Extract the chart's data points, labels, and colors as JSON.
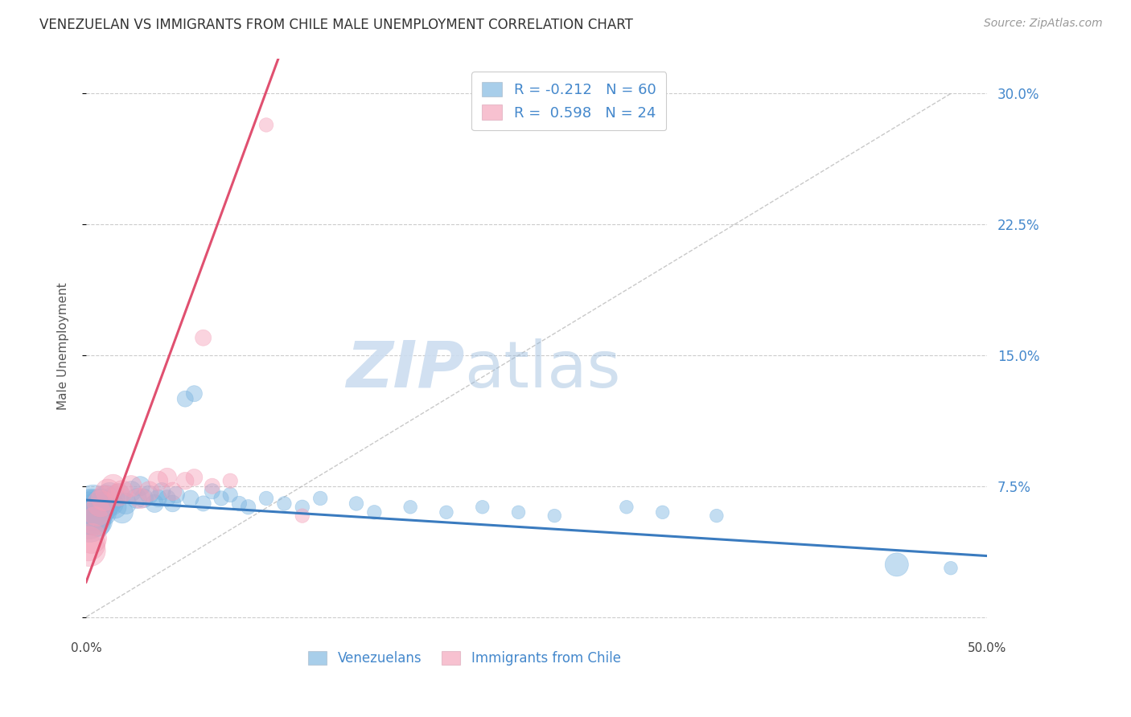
{
  "title": "VENEZUELAN VS IMMIGRANTS FROM CHILE MALE UNEMPLOYMENT CORRELATION CHART",
  "source": "Source: ZipAtlas.com",
  "ylabel": "Male Unemployment",
  "xlim": [
    0.0,
    0.5
  ],
  "ylim": [
    -0.01,
    0.32
  ],
  "yticks": [
    0.0,
    0.075,
    0.15,
    0.225,
    0.3
  ],
  "ytick_labels_right": [
    "",
    "7.5%",
    "15.0%",
    "22.5%",
    "30.0%"
  ],
  "background_color": "#ffffff",
  "blue_color": "#7ab4e0",
  "pink_color": "#f4a0b8",
  "trendline_blue_color": "#3a7bbf",
  "trendline_pink_color": "#e05070",
  "legend_R_blue": "-0.212",
  "legend_N_blue": "60",
  "legend_R_pink": "0.598",
  "legend_N_pink": "24",
  "venezuelan_x": [
    0.001,
    0.002,
    0.002,
    0.003,
    0.003,
    0.004,
    0.004,
    0.005,
    0.005,
    0.006,
    0.006,
    0.007,
    0.008,
    0.009,
    0.01,
    0.011,
    0.012,
    0.013,
    0.014,
    0.015,
    0.016,
    0.018,
    0.02,
    0.022,
    0.025,
    0.028,
    0.03,
    0.032,
    0.035,
    0.038,
    0.04,
    0.042,
    0.045,
    0.048,
    0.05,
    0.055,
    0.058,
    0.06,
    0.065,
    0.07,
    0.075,
    0.08,
    0.085,
    0.09,
    0.1,
    0.11,
    0.12,
    0.13,
    0.15,
    0.16,
    0.18,
    0.2,
    0.22,
    0.24,
    0.26,
    0.3,
    0.32,
    0.35,
    0.45,
    0.48
  ],
  "venezuelan_y": [
    0.058,
    0.06,
    0.055,
    0.062,
    0.058,
    0.065,
    0.06,
    0.063,
    0.058,
    0.062,
    0.055,
    0.06,
    0.065,
    0.06,
    0.063,
    0.068,
    0.065,
    0.07,
    0.065,
    0.068,
    0.063,
    0.07,
    0.06,
    0.065,
    0.072,
    0.068,
    0.075,
    0.068,
    0.07,
    0.065,
    0.068,
    0.072,
    0.068,
    0.065,
    0.07,
    0.125,
    0.068,
    0.128,
    0.065,
    0.072,
    0.068,
    0.07,
    0.065,
    0.063,
    0.068,
    0.065,
    0.063,
    0.068,
    0.065,
    0.06,
    0.063,
    0.06,
    0.063,
    0.06,
    0.058,
    0.063,
    0.06,
    0.058,
    0.03,
    0.028
  ],
  "venezuelan_size": [
    220,
    200,
    180,
    160,
    150,
    140,
    130,
    120,
    110,
    100,
    95,
    90,
    85,
    80,
    75,
    70,
    65,
    60,
    58,
    55,
    52,
    50,
    48,
    45,
    42,
    40,
    38,
    36,
    34,
    32,
    30,
    30,
    28,
    28,
    28,
    26,
    26,
    26,
    24,
    24,
    22,
    22,
    22,
    22,
    20,
    20,
    20,
    20,
    20,
    20,
    18,
    18,
    18,
    18,
    18,
    18,
    18,
    18,
    55,
    18
  ],
  "chile_x": [
    0.001,
    0.002,
    0.003,
    0.005,
    0.006,
    0.008,
    0.01,
    0.012,
    0.015,
    0.018,
    0.02,
    0.025,
    0.03,
    0.035,
    0.04,
    0.045,
    0.048,
    0.055,
    0.06,
    0.065,
    0.07,
    0.08,
    0.1,
    0.12
  ],
  "chile_y": [
    0.042,
    0.038,
    0.045,
    0.055,
    0.06,
    0.065,
    0.068,
    0.072,
    0.075,
    0.07,
    0.072,
    0.075,
    0.068,
    0.072,
    0.078,
    0.08,
    0.072,
    0.078,
    0.08,
    0.16,
    0.075,
    0.078,
    0.282,
    0.058
  ],
  "chile_size": [
    120,
    100,
    90,
    80,
    75,
    70,
    65,
    60,
    55,
    50,
    48,
    45,
    42,
    40,
    38,
    35,
    33,
    30,
    28,
    26,
    24,
    22,
    20,
    20
  ]
}
